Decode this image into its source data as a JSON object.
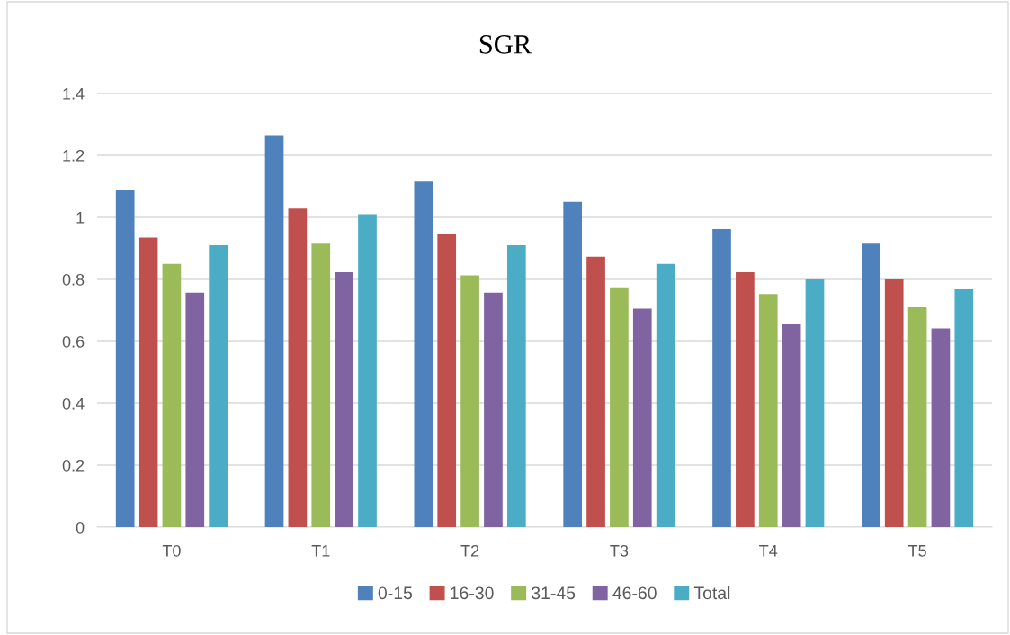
{
  "chart_data": {
    "type": "bar",
    "title": "SGR",
    "categories": [
      "T0",
      "T1",
      "T2",
      "T3",
      "T4",
      "T5"
    ],
    "series": [
      {
        "name": "0-15",
        "color": "#4f81bd",
        "values": [
          1.09,
          1.265,
          1.115,
          1.05,
          0.962,
          0.915
        ]
      },
      {
        "name": "16-30",
        "color": "#c0504d",
        "values": [
          0.935,
          1.028,
          0.948,
          0.873,
          0.823,
          0.8
        ]
      },
      {
        "name": "31-45",
        "color": "#9bbb59",
        "values": [
          0.85,
          0.915,
          0.813,
          0.772,
          0.753,
          0.71
        ]
      },
      {
        "name": "46-60",
        "color": "#8064a2",
        "values": [
          0.757,
          0.823,
          0.757,
          0.706,
          0.655,
          0.642
        ]
      },
      {
        "name": "Total",
        "color": "#4bacc6",
        "values": [
          0.91,
          1.01,
          0.91,
          0.85,
          0.8,
          0.768
        ]
      }
    ],
    "ylim": [
      0,
      1.4
    ],
    "yticks": [
      {
        "value": 0,
        "label": "0"
      },
      {
        "value": 0.2,
        "label": "0.2"
      },
      {
        "value": 0.4,
        "label": "0.4"
      },
      {
        "value": 0.6,
        "label": "0.6"
      },
      {
        "value": 0.8,
        "label": "0.8"
      },
      {
        "value": 1,
        "label": "1"
      },
      {
        "value": 1.2,
        "label": "1.2"
      },
      {
        "value": 1.4,
        "label": "1.4"
      }
    ],
    "grid": "y",
    "legend": "bottom"
  }
}
